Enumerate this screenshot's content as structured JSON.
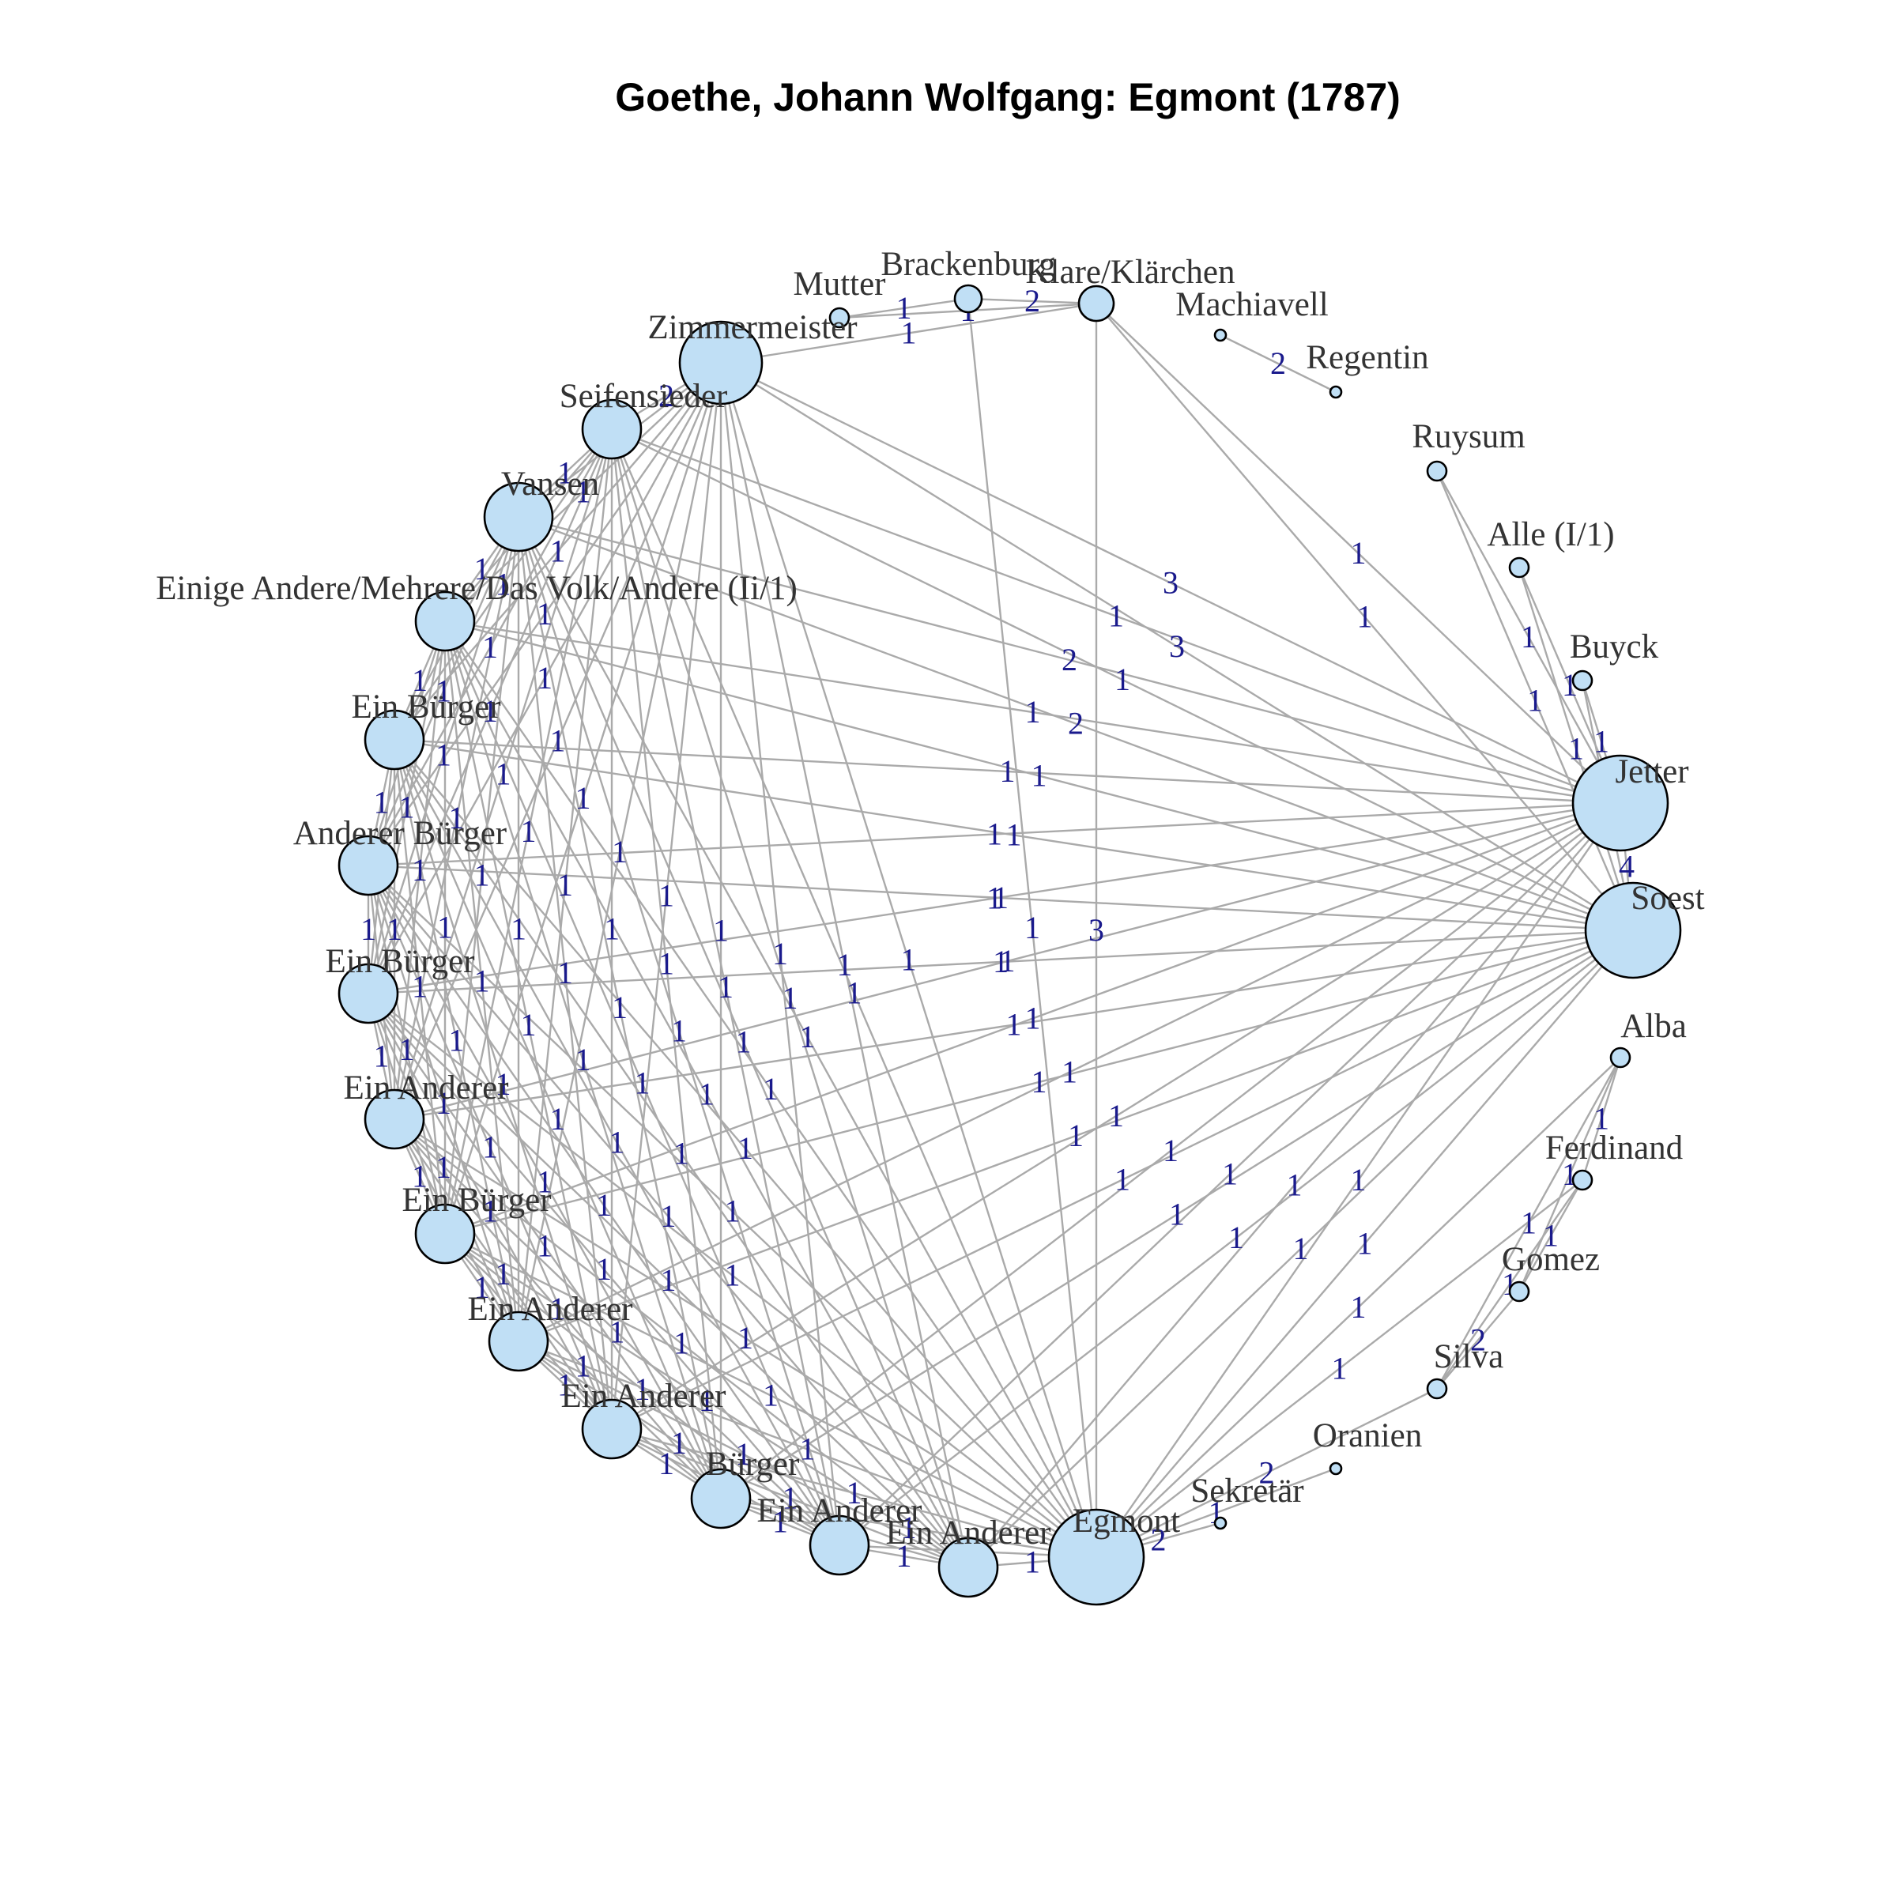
{
  "title": "Goethe, Johann Wolfgang: Egmont (1787)",
  "colors": {
    "node_fill": "#c0dff5",
    "node_stroke": "#000000",
    "edge": "#aaaaaa",
    "edge_label": "#1a1a8c",
    "node_label": "#333333"
  },
  "nodes": [
    {
      "id": "mutter",
      "label": "Mutter",
      "size": 1
    },
    {
      "id": "brackenburg",
      "label": "Brackenburg",
      "size": 2
    },
    {
      "id": "klare",
      "label": "Klare/Klärchen",
      "size": 3
    },
    {
      "id": "machiavell",
      "label": "Machiavell",
      "size": 0
    },
    {
      "id": "regentin",
      "label": "Regentin",
      "size": 0
    },
    {
      "id": "ruysum",
      "label": "Ruysum",
      "size": 1
    },
    {
      "id": "alle",
      "label": "Alle (I/1)",
      "size": 1
    },
    {
      "id": "buyck",
      "label": "Buyck",
      "size": 1
    },
    {
      "id": "jetter",
      "label": "Jetter",
      "size": 8
    },
    {
      "id": "soest",
      "label": "Soest",
      "size": 8
    },
    {
      "id": "alba",
      "label": "Alba",
      "size": 1
    },
    {
      "id": "ferdinand",
      "label": "Ferdinand",
      "size": 1
    },
    {
      "id": "gomez",
      "label": "Gomez",
      "size": 1
    },
    {
      "id": "silva",
      "label": "Silva",
      "size": 1
    },
    {
      "id": "oranien",
      "label": "Oranien",
      "size": 0
    },
    {
      "id": "sekretaer",
      "label": "Sekretär",
      "size": 0
    },
    {
      "id": "egmont",
      "label": "Egmont",
      "size": 8
    },
    {
      "id": "ein_anderer_5",
      "label": "Ein Anderer",
      "size": 4
    },
    {
      "id": "ein_anderer_4",
      "label": "Ein Anderer",
      "size": 4
    },
    {
      "id": "buerger",
      "label": "Bürger",
      "size": 4
    },
    {
      "id": "ein_anderer_3",
      "label": "Ein Anderer",
      "size": 4
    },
    {
      "id": "ein_anderer_2",
      "label": "Ein Anderer",
      "size": 4
    },
    {
      "id": "ein_buerger_3",
      "label": "Ein Bürger",
      "size": 4
    },
    {
      "id": "ein_anderer_1",
      "label": "Ein Anderer",
      "size": 4
    },
    {
      "id": "ein_buerger_2",
      "label": "Ein Bürger",
      "size": 4
    },
    {
      "id": "anderer_buerger",
      "label": "Anderer Bürger",
      "size": 4
    },
    {
      "id": "ein_buerger_1",
      "label": "Ein Bürger",
      "size": 4
    },
    {
      "id": "einige_andere",
      "label": "Einige Andere/Mehrere/Das Volk/Andere (Ii/1)",
      "size": 4
    },
    {
      "id": "vansen",
      "label": "Vansen",
      "size": 5
    },
    {
      "id": "seifensieder",
      "label": "Seifensieder",
      "size": 4
    },
    {
      "id": "zimmermeister",
      "label": "Zimmermeister",
      "size": 7
    }
  ],
  "edges": [
    {
      "a": "mutter",
      "b": "brackenburg",
      "w": "1"
    },
    {
      "a": "mutter",
      "b": "klare",
      "w": "1"
    },
    {
      "a": "brackenburg",
      "b": "klare",
      "w": "2"
    },
    {
      "a": "zimmermeister",
      "b": "klare",
      "w": "1"
    },
    {
      "a": "klare",
      "b": "egmont",
      "w": "3"
    },
    {
      "a": "klare",
      "b": "jetter",
      "w": "1"
    },
    {
      "a": "klare",
      "b": "soest",
      "w": "1"
    },
    {
      "a": "brackenburg",
      "b": "egmont",
      "w": "1"
    },
    {
      "a": "machiavell",
      "b": "regentin",
      "w": "2"
    },
    {
      "a": "ruysum",
      "b": "jetter",
      "w": "1"
    },
    {
      "a": "ruysum",
      "b": "soest",
      "w": "1"
    },
    {
      "a": "alle",
      "b": "jetter",
      "w": "1"
    },
    {
      "a": "alle",
      "b": "soest",
      "w": "1"
    },
    {
      "a": "buyck",
      "b": "jetter",
      "w": "1"
    },
    {
      "a": "buyck",
      "b": "soest",
      "w": "1"
    },
    {
      "a": "jetter",
      "b": "soest",
      "w": "4"
    },
    {
      "a": "alba",
      "b": "ferdinand",
      "w": "1"
    },
    {
      "a": "alba",
      "b": "gomez",
      "w": "1"
    },
    {
      "a": "alba",
      "b": "silva",
      "w": "1"
    },
    {
      "a": "alba",
      "b": "egmont",
      "w": "1"
    },
    {
      "a": "ferdinand",
      "b": "gomez",
      "w": "1"
    },
    {
      "a": "ferdinand",
      "b": "silva",
      "w": "1"
    },
    {
      "a": "gomez",
      "b": "silva",
      "w": "2"
    },
    {
      "a": "silva",
      "b": "egmont",
      "w": "2"
    },
    {
      "a": "ferdinand",
      "b": "egmont",
      "w": "1"
    },
    {
      "a": "oranien",
      "b": "egmont",
      "w": "1"
    },
    {
      "a": "sekretaer",
      "b": "egmont",
      "w": "2"
    },
    {
      "a": "zimmermeister",
      "b": "jetter",
      "w": "3"
    },
    {
      "a": "zimmermeister",
      "b": "soest",
      "w": "3"
    },
    {
      "a": "vansen",
      "b": "jetter",
      "w": "2"
    },
    {
      "a": "vansen",
      "b": "soest",
      "w": "2"
    },
    {
      "a": "seifensieder",
      "b": "zimmermeister",
      "w": "2"
    },
    {
      "a": "seifensieder",
      "b": "jetter",
      "w": "1"
    },
    {
      "a": "seifensieder",
      "b": "soest",
      "w": "1"
    },
    {
      "a": "vansen",
      "b": "zimmermeister",
      "w": "1"
    },
    {
      "a": "vansen",
      "b": "seifensieder",
      "w": "1"
    },
    {
      "a": "vansen",
      "b": "egmont",
      "w": "1"
    },
    {
      "a": "zimmermeister",
      "b": "egmont",
      "w": "1"
    },
    {
      "a": "seifensieder",
      "b": "egmont",
      "w": "1"
    },
    {
      "a": "jetter",
      "b": "egmont",
      "w": "1"
    },
    {
      "a": "soest",
      "b": "egmont",
      "w": "1"
    }
  ],
  "crowd_group": [
    "einige_andere",
    "ein_buerger_1",
    "anderer_buerger",
    "ein_buerger_2",
    "ein_anderer_1",
    "ein_buerger_3",
    "ein_anderer_2",
    "ein_anderer_3",
    "buerger",
    "ein_anderer_4",
    "ein_anderer_5"
  ],
  "crowd_links": [
    "seifensieder",
    "vansen",
    "zimmermeister",
    "jetter",
    "soest",
    "egmont"
  ],
  "crowd_weight": "1"
}
